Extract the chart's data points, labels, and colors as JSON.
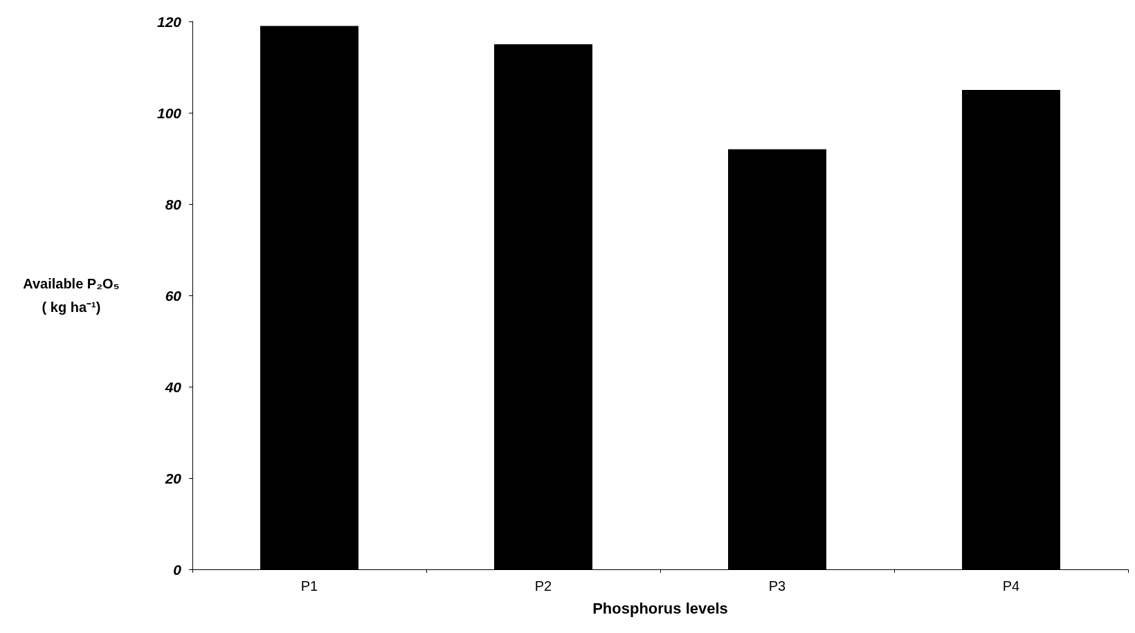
{
  "chart_data": {
    "type": "bar",
    "xlabel": "Phosphorus levels",
    "ylabel": "Available P₂O₅\n( kg ha⁻¹)",
    "categories": [
      "P1",
      "P2",
      "P3",
      "P4"
    ],
    "values": [
      119,
      115,
      92,
      105
    ],
    "color": "#000000",
    "ylim": [
      0,
      120
    ],
    "yticks": [
      0,
      20,
      40,
      60,
      80,
      100,
      120
    ],
    "grid": false
  }
}
